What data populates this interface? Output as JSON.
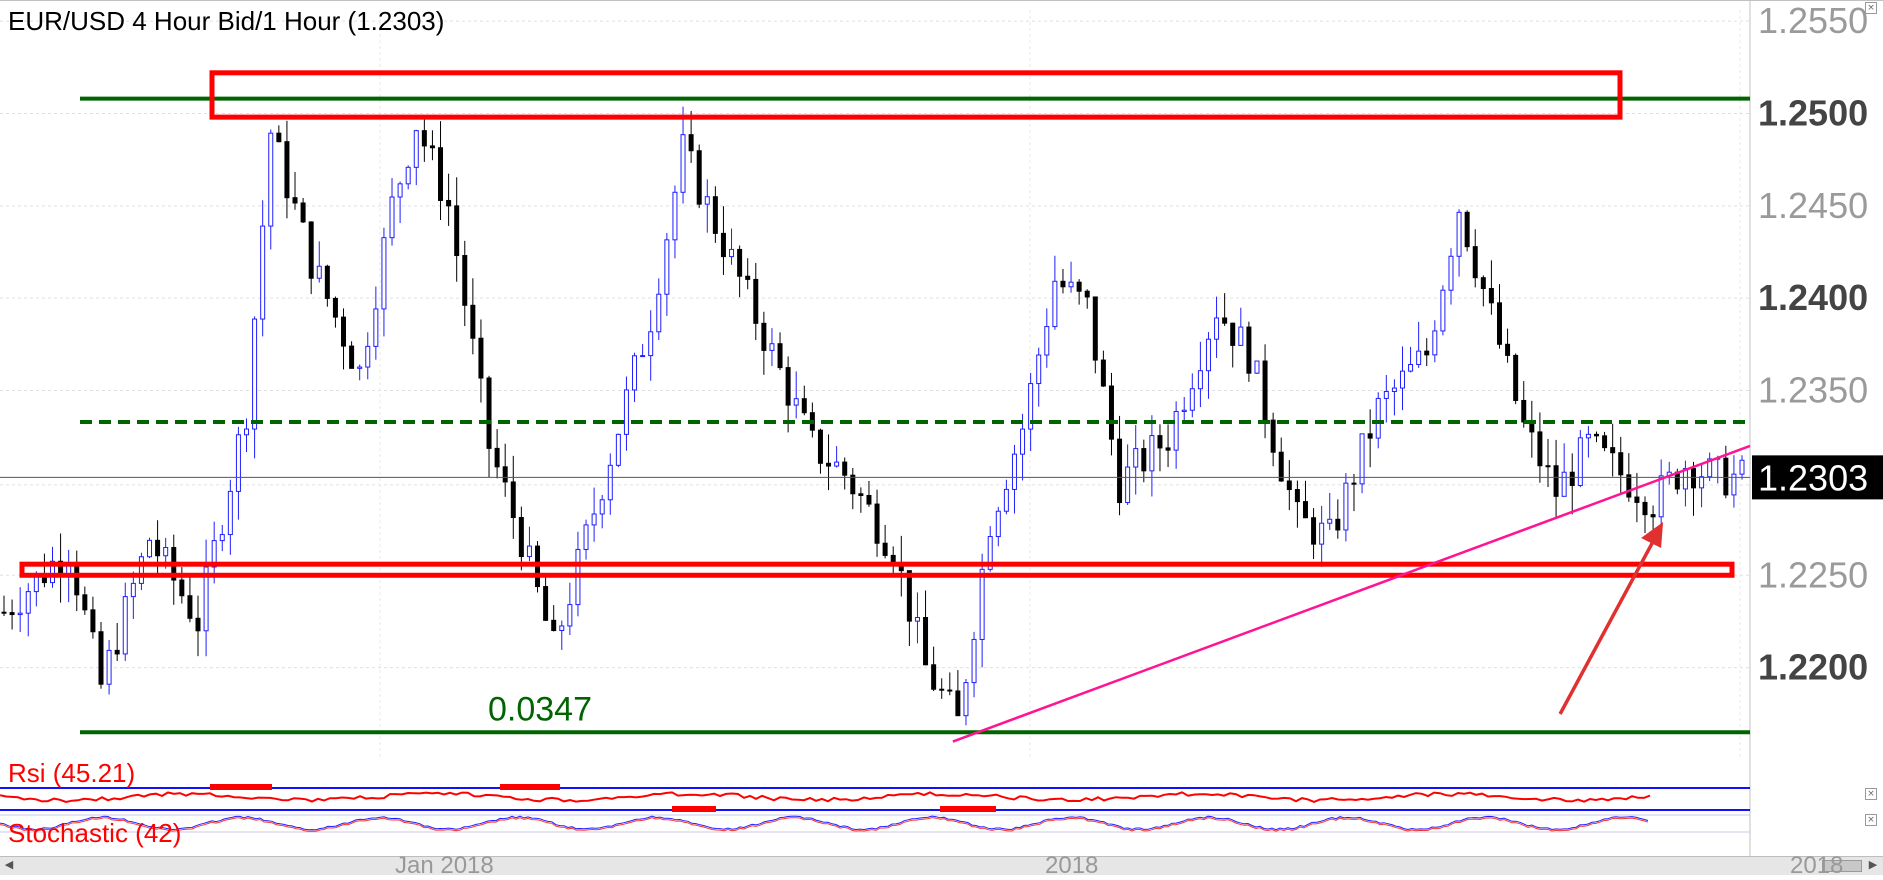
{
  "header": {
    "title": "EUR/USD 4 Hour Bid/1 Hour (1.2303)"
  },
  "indicators": {
    "rsi_label": "Rsi (45.21)",
    "stoch_label": "Stochastic (42)"
  },
  "colors": {
    "candle_up": "#1e1eff",
    "candle_down": "#000000",
    "resistance_box": "#ff0000",
    "support_line": "#006400",
    "trendline": "#ff1493",
    "arrow": "#e03030",
    "price_tag_bg": "#000000"
  },
  "chart_data": {
    "type": "candlestick",
    "title": "EUR/USD 4 Hour Bid/1 Hour (1.2303)",
    "ylim": [
      1.215,
      1.2556
    ],
    "yticks": [
      {
        "value": 1.255,
        "label": "1.2550",
        "bold": false
      },
      {
        "value": 1.25,
        "label": "1.2500",
        "bold": true
      },
      {
        "value": 1.245,
        "label": "1.2450",
        "bold": false
      },
      {
        "value": 1.24,
        "label": "1.2400",
        "bold": true
      },
      {
        "value": 1.235,
        "label": "1.2350",
        "bold": false
      },
      {
        "value": 1.225,
        "label": "1.2250",
        "bold": false
      },
      {
        "value": 1.22,
        "label": "1.2200",
        "bold": true
      }
    ],
    "current_price": 1.2303,
    "current_price_label": "1.2303",
    "xlabels": [
      "Jan 2018",
      "2018",
      "2018"
    ],
    "bars": 216,
    "price_path": [
      [
        0,
        1.223
      ],
      [
        8,
        1.2265
      ],
      [
        12,
        1.219
      ],
      [
        18,
        1.227
      ],
      [
        24,
        1.2225
      ],
      [
        30,
        1.234
      ],
      [
        33,
        1.249
      ],
      [
        38,
        1.242
      ],
      [
        44,
        1.236
      ],
      [
        48,
        1.245
      ],
      [
        51,
        1.2495
      ],
      [
        55,
        1.245
      ],
      [
        60,
        1.232
      ],
      [
        64,
        1.227
      ],
      [
        68,
        1.221
      ],
      [
        74,
        1.23
      ],
      [
        80,
        1.239
      ],
      [
        84,
        1.248
      ],
      [
        88,
        1.244
      ],
      [
        94,
        1.238
      ],
      [
        100,
        1.232
      ],
      [
        104,
        1.2305
      ],
      [
        110,
        1.2265
      ],
      [
        114,
        1.22
      ],
      [
        118,
        1.217
      ],
      [
        122,
        1.228
      ],
      [
        126,
        1.233
      ],
      [
        130,
        1.241
      ],
      [
        134,
        1.2395
      ],
      [
        138,
        1.23
      ],
      [
        144,
        1.2325
      ],
      [
        150,
        1.2395
      ],
      [
        154,
        1.237
      ],
      [
        160,
        1.228
      ],
      [
        164,
        1.227
      ],
      [
        170,
        1.234
      ],
      [
        176,
        1.237
      ],
      [
        180,
        1.245
      ],
      [
        184,
        1.239
      ],
      [
        188,
        1.233
      ],
      [
        192,
        1.2295
      ],
      [
        196,
        1.232
      ],
      [
        200,
        1.2305
      ],
      [
        204,
        1.229
      ],
      [
        208,
        1.231
      ],
      [
        212,
        1.2303
      ]
    ],
    "annotations": {
      "resistance_box": {
        "y_low": 1.2498,
        "y_high": 1.2522
      },
      "resistance_line": 1.2508,
      "mid_dashed_line": 1.2333,
      "support_box": {
        "y_low": 1.225,
        "y_high": 1.2256
      },
      "support_line": 1.2165,
      "range_label": "0.0347",
      "trendline": {
        "from": [
          118,
          1.216
        ],
        "to": [
          216,
          1.232
        ]
      },
      "arrow_target_bar": 204
    }
  }
}
